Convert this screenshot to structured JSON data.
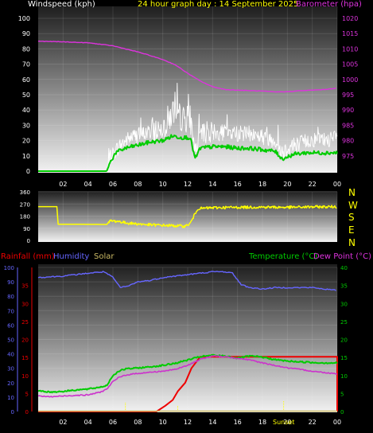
{
  "colors": {
    "wind": "#ffffff",
    "gust": "#ffffff",
    "windAvg": "#00cc00",
    "baro": "#dd33dd",
    "dir": "#ffff00",
    "rain": "#ee0000",
    "humidity": "#6666ff",
    "solar": "#ccbb66",
    "temp": "#00cc00",
    "dew": "#cc33cc",
    "axis": "#ffffff",
    "yellowTick": "#ffff00"
  },
  "chart_data": [
    {
      "type": "line",
      "title": "24 hour graph day : 14 September 2025",
      "labels": {
        "wind": "Windspeed (kph)",
        "baro": "Barometer (hpa)"
      },
      "x": {
        "ticks": [
          "02",
          "04",
          "06",
          "08",
          "10",
          "12",
          "14",
          "16",
          "18",
          "20",
          "22",
          "00"
        ],
        "range_hours": [
          0,
          24
        ]
      },
      "ylim_left": [
        0,
        100
      ],
      "yticks_left": [
        "100",
        "90",
        "80",
        "70",
        "60",
        "50",
        "40",
        "30",
        "20",
        "10",
        "0"
      ],
      "ylim_right": [
        970,
        1020
      ],
      "yticks_right": [
        "1020",
        "1015",
        "1010",
        "1005",
        "1000",
        "995",
        "990",
        "985",
        "980",
        "975"
      ],
      "series": [
        {
          "name": "Windspeed (kph)",
          "x": [
            0,
            5.5,
            5.8,
            6.2,
            6.8,
            7.5,
            8.5,
            9.5,
            10.3,
            10.8,
            11.2,
            11.6,
            12.2,
            12.6,
            13.0,
            13.5,
            14.2,
            15,
            16,
            17,
            18,
            19,
            19.6,
            20.2,
            21,
            22,
            23,
            24
          ],
          "y": [
            0,
            0,
            8,
            13,
            18,
            22,
            24,
            26,
            30,
            38,
            36,
            33,
            34,
            12,
            24,
            26,
            24,
            25,
            24,
            24,
            22,
            20,
            12,
            16,
            18,
            20,
            20,
            21
          ]
        },
        {
          "name": "Average wind",
          "x": [
            0,
            5.5,
            5.8,
            6.2,
            7,
            8,
            9,
            10,
            10.8,
            11.5,
            12.2,
            12.6,
            13.0,
            14,
            15,
            16,
            17,
            18,
            19,
            19.6,
            20.5,
            21.5,
            22.5,
            24
          ],
          "y": [
            0,
            0,
            6,
            12,
            15,
            17,
            19,
            20,
            23,
            22,
            22,
            8,
            15,
            16,
            16,
            15,
            15,
            14,
            13,
            8,
            11,
            12,
            12,
            12
          ]
        },
        {
          "name": "Barometer (hpa)",
          "x": [
            0,
            2,
            4,
            6,
            8,
            9,
            10,
            11,
            12,
            13,
            14,
            15,
            16,
            18,
            19,
            20,
            21,
            22,
            23,
            24
          ],
          "y": [
            1012.5,
            1012.3,
            1012,
            1011,
            1009,
            1007.8,
            1006.5,
            1004.8,
            1002,
            999.5,
            997.6,
            996.7,
            996.5,
            996.2,
            995.9,
            996,
            996.3,
            996.5,
            996.7,
            997.2
          ]
        }
      ]
    },
    {
      "type": "line",
      "labels": {
        "compass": [
          "N",
          "W",
          "S",
          "E",
          "N"
        ]
      },
      "ylim": [
        0,
        360
      ],
      "yticks": [
        "360",
        "270",
        "180",
        "90",
        "0"
      ],
      "series": [
        {
          "name": "Wind direction",
          "x": [
            0,
            1.5,
            1.6,
            5.5,
            5.8,
            6.5,
            7,
            8,
            9,
            10,
            11,
            11.8,
            12.2,
            12.8,
            14,
            16,
            18,
            20,
            22,
            24
          ],
          "y": [
            250,
            250,
            120,
            118,
            145,
            140,
            130,
            122,
            115,
            112,
            108,
            105,
            125,
            235,
            242,
            245,
            247,
            245,
            248,
            250
          ]
        }
      ]
    },
    {
      "type": "line",
      "labels": {
        "rain": "Rainfall (mm)",
        "humidity": "Humidity",
        "solar": "Solar",
        "temp": "Temperature (°C)",
        "dew": "Dew Point (°C)",
        "sunset": "Sunset"
      },
      "ylim_left": [
        0,
        100
      ],
      "yticks_left": [
        "100",
        "90",
        "80",
        "70",
        "60",
        "50",
        "40",
        "30",
        "20",
        "10",
        "0"
      ],
      "yticks_rain": [
        "35",
        "30",
        "25",
        "20",
        "15",
        "10",
        "5",
        "0"
      ],
      "ylim_right": [
        0,
        40
      ],
      "yticks_right": [
        "40",
        "35",
        "30",
        "25",
        "20",
        "15",
        "10",
        "5",
        "0"
      ],
      "series": [
        {
          "name": "Rainfall (mm)",
          "x": [
            0,
            8,
            9.5,
            10.2,
            10.8,
            11.2,
            11.8,
            12.3,
            13,
            24,
            24
          ],
          "y": [
            0,
            0,
            0,
            4,
            8,
            14,
            20,
            30,
            38,
            38,
            0
          ]
        },
        {
          "name": "Humidity",
          "x": [
            0,
            2,
            4,
            5.3,
            6,
            6.6,
            7.2,
            8,
            9,
            10,
            11,
            12,
            13,
            14,
            15,
            15.6,
            16.3,
            17,
            18,
            19,
            20,
            21,
            22,
            23,
            24
          ],
          "y": [
            93,
            94,
            96,
            97,
            93,
            86,
            87,
            90,
            91,
            93,
            94,
            95,
            96,
            97,
            97,
            96,
            88,
            86,
            85,
            86,
            86,
            86,
            86,
            85,
            84
          ]
        },
        {
          "name": "Temperature (°C)",
          "x": [
            0,
            1,
            2,
            3,
            4,
            5,
            5.5,
            6,
            6.5,
            7,
            8,
            9,
            10,
            11,
            12,
            13,
            14,
            15,
            16,
            17,
            18,
            19,
            20,
            21,
            22,
            23,
            24
          ],
          "y": [
            5.8,
            5.4,
            5.6,
            6,
            6.2,
            6.8,
            7.2,
            10,
            11.3,
            11.8,
            12.1,
            12.4,
            12.8,
            13.4,
            14.3,
            15.2,
            15.6,
            15.4,
            14.8,
            15.4,
            15.1,
            14.4,
            14,
            13.8,
            13.6,
            13.5,
            13.5
          ]
        },
        {
          "name": "Dew Point (°C)",
          "x": [
            0,
            1,
            2,
            3,
            4,
            5,
            5.5,
            6,
            6.5,
            7,
            8,
            9,
            10,
            11,
            12,
            13,
            14,
            15,
            16,
            17,
            18,
            19,
            20,
            21,
            22,
            23,
            24
          ],
          "y": [
            4.3,
            4.1,
            4.3,
            4.5,
            4.6,
            5.4,
            6.2,
            8.3,
            9.5,
            10.1,
            10.6,
            10.9,
            11.2,
            11.7,
            12.8,
            14.5,
            15.4,
            15.2,
            14.8,
            14.3,
            13.5,
            12.8,
            12.1,
            11.7,
            11.2,
            10.8,
            10.5
          ]
        },
        {
          "name": "Solar",
          "x": [
            4.7,
            7,
            11.2,
            19.7
          ],
          "y": [
            2,
            12,
            8,
            14
          ]
        }
      ]
    }
  ]
}
